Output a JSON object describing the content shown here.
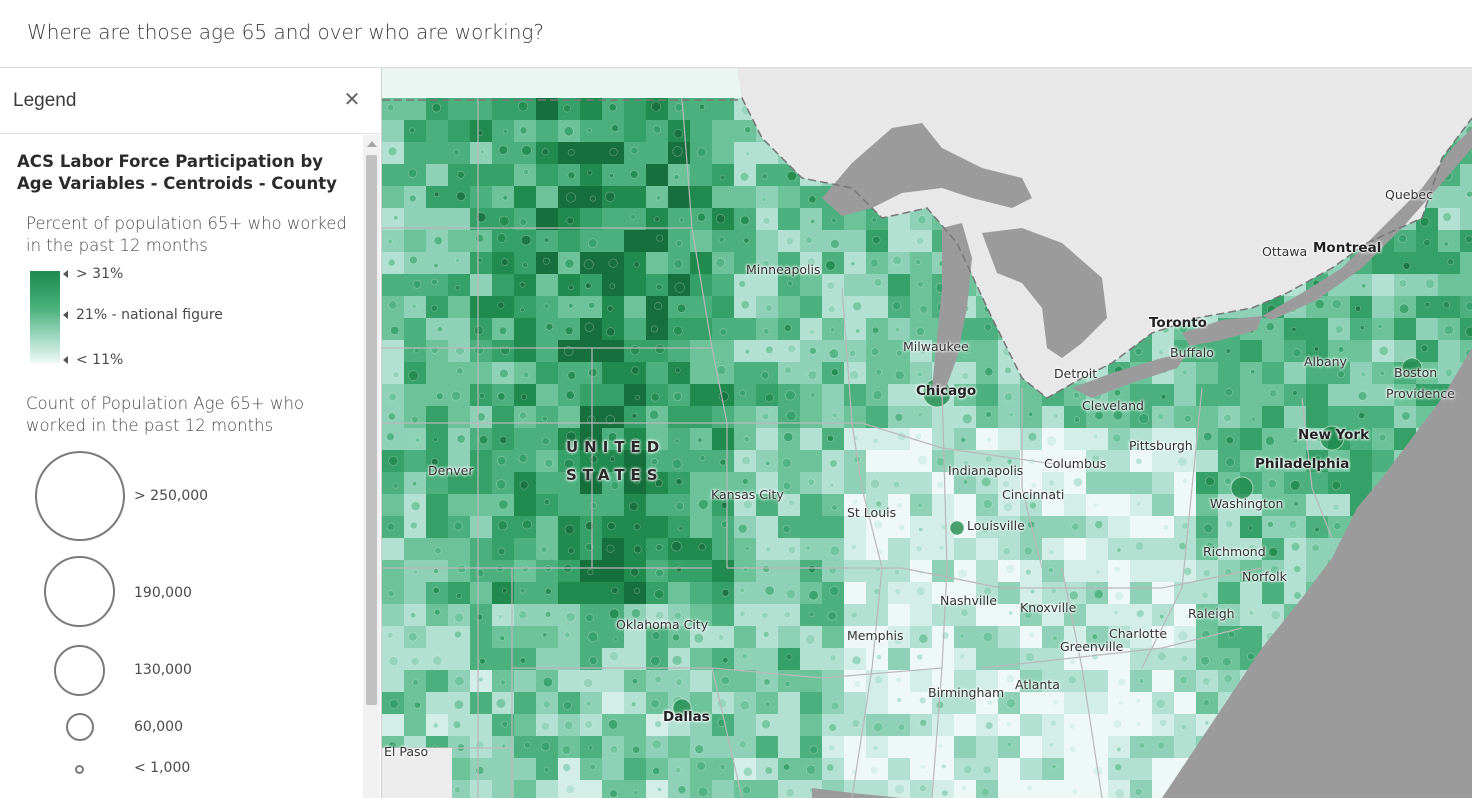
{
  "header": {
    "title": "Where are those age 65 and over who are working?"
  },
  "legend": {
    "title": "Legend",
    "close_icon": "close-icon",
    "layer_title": "ACS Labor Force Participation by Age Variables - Centroids - County",
    "color_section": {
      "title": "Percent of population 65+ who worked in the past 12 months",
      "stops": [
        {
          "label": "> 31%",
          "color": "#1f8a4c"
        },
        {
          "label": "21% - national figure",
          "color": "#6cc39a"
        },
        {
          "label": "< 11%",
          "color": "#eef8f6"
        }
      ]
    },
    "size_section": {
      "title": "Count of Population Age 65+ who worked in the past 12 months",
      "stops": [
        {
          "label": "> 250,000"
        },
        {
          "label": "190,000"
        },
        {
          "label": "130,000"
        },
        {
          "label": "60,000"
        },
        {
          "label": "< 1,000"
        }
      ]
    }
  },
  "map": {
    "colors": {
      "water": "#9b9b9b",
      "land": "#e6e6e6",
      "dark_green": "#1f8a4c",
      "light_green": "#eef8f6"
    },
    "labels": {
      "quebec": "Quebec",
      "ottawa": "Ottawa",
      "montreal": "Montreal",
      "toronto": "Toronto",
      "buffalo": "Buffalo",
      "albany": "Albany",
      "boston": "Boston",
      "providence": "Providence",
      "minneapolis": "Minneapolis",
      "milwaukee": "Milwaukee",
      "detroit": "Detroit",
      "chicago": "Chicago",
      "cleveland": "Cleveland",
      "pittsburgh": "Pittsburgh",
      "new_york": "New York",
      "philadelphia": "Philadelphia",
      "united": "UNITED",
      "states": "STATES",
      "denver": "Denver",
      "indianapolis": "Indianapolis",
      "columbus": "Columbus",
      "kansas_city": "Kansas City",
      "cincinnati": "Cincinnati",
      "washington": "Washington",
      "st_louis": "St Louis",
      "louisville": "Louisville",
      "richmond": "Richmond",
      "norfolk": "Norfolk",
      "nashville": "Nashville",
      "knoxville": "Knoxville",
      "raleigh": "Raleigh",
      "oklahoma_city": "Oklahoma City",
      "memphis": "Memphis",
      "charlotte": "Charlotte",
      "greenville": "Greenville",
      "atlanta": "Atlanta",
      "birmingham": "Birmingham",
      "dallas": "Dallas",
      "el_paso": "El Paso"
    }
  }
}
